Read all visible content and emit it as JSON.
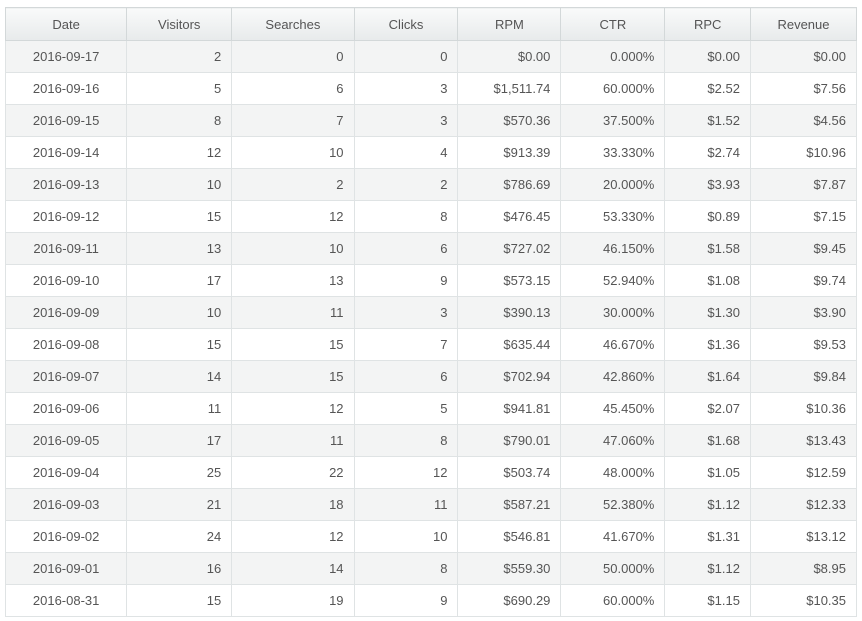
{
  "table": {
    "columns": [
      "Date",
      "Visitors",
      "Searches",
      "Clicks",
      "RPM",
      "CTR",
      "RPC",
      "Revenue"
    ],
    "rows": [
      [
        "2016-09-17",
        "2",
        "0",
        "0",
        "$0.00",
        "0.000%",
        "$0.00",
        "$0.00"
      ],
      [
        "2016-09-16",
        "5",
        "6",
        "3",
        "$1,511.74",
        "60.000%",
        "$2.52",
        "$7.56"
      ],
      [
        "2016-09-15",
        "8",
        "7",
        "3",
        "$570.36",
        "37.500%",
        "$1.52",
        "$4.56"
      ],
      [
        "2016-09-14",
        "12",
        "10",
        "4",
        "$913.39",
        "33.330%",
        "$2.74",
        "$10.96"
      ],
      [
        "2016-09-13",
        "10",
        "2",
        "2",
        "$786.69",
        "20.000%",
        "$3.93",
        "$7.87"
      ],
      [
        "2016-09-12",
        "15",
        "12",
        "8",
        "$476.45",
        "53.330%",
        "$0.89",
        "$7.15"
      ],
      [
        "2016-09-11",
        "13",
        "10",
        "6",
        "$727.02",
        "46.150%",
        "$1.58",
        "$9.45"
      ],
      [
        "2016-09-10",
        "17",
        "13",
        "9",
        "$573.15",
        "52.940%",
        "$1.08",
        "$9.74"
      ],
      [
        "2016-09-09",
        "10",
        "11",
        "3",
        "$390.13",
        "30.000%",
        "$1.30",
        "$3.90"
      ],
      [
        "2016-09-08",
        "15",
        "15",
        "7",
        "$635.44",
        "46.670%",
        "$1.36",
        "$9.53"
      ],
      [
        "2016-09-07",
        "14",
        "15",
        "6",
        "$702.94",
        "42.860%",
        "$1.64",
        "$9.84"
      ],
      [
        "2016-09-06",
        "11",
        "12",
        "5",
        "$941.81",
        "45.450%",
        "$2.07",
        "$10.36"
      ],
      [
        "2016-09-05",
        "17",
        "11",
        "8",
        "$790.01",
        "47.060%",
        "$1.68",
        "$13.43"
      ],
      [
        "2016-09-04",
        "25",
        "22",
        "12",
        "$503.74",
        "48.000%",
        "$1.05",
        "$12.59"
      ],
      [
        "2016-09-03",
        "21",
        "18",
        "11",
        "$587.21",
        "52.380%",
        "$1.12",
        "$12.33"
      ],
      [
        "2016-09-02",
        "24",
        "12",
        "10",
        "$546.81",
        "41.670%",
        "$1.31",
        "$13.12"
      ],
      [
        "2016-09-01",
        "16",
        "14",
        "8",
        "$559.30",
        "50.000%",
        "$1.12",
        "$8.95"
      ],
      [
        "2016-08-31",
        "15",
        "19",
        "9",
        "$690.29",
        "60.000%",
        "$1.15",
        "$10.35"
      ]
    ]
  }
}
